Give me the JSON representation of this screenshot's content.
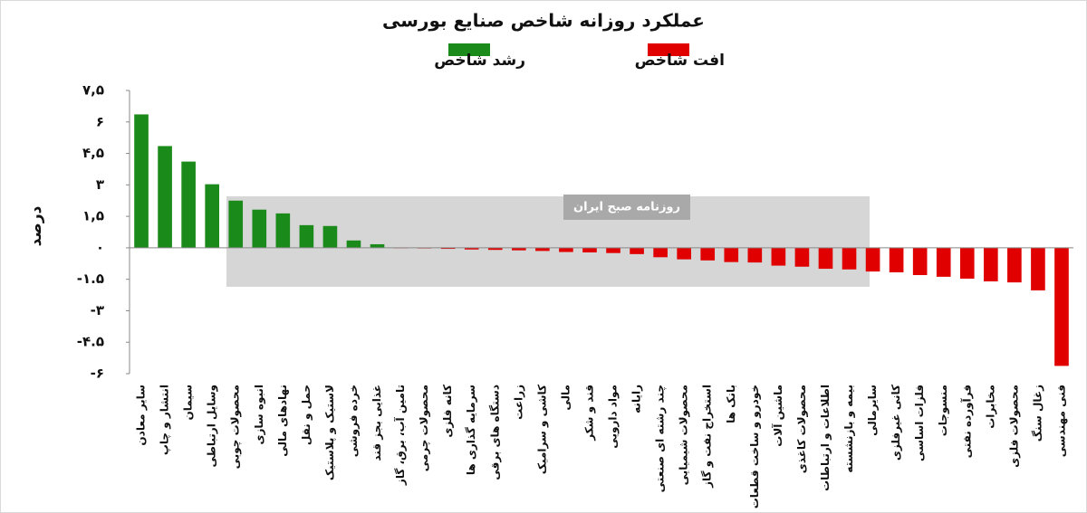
{
  "chart_data": {
    "type": "bar",
    "title": "عملکرد روزانه شاخص صنایع بورسی",
    "y_label": "درصد",
    "watermark": "روزنامه صبح ایران",
    "categories": [
      "سایر معادن",
      "انتشار و چاپ",
      "سیمان",
      "وسایل ارتباطی",
      "محصولات چوبی",
      "انبوه سازی",
      "نهادهای مالی",
      "حمل و نقل",
      "لاستیک و پلاستیک",
      "خرده فروشی",
      "غذایی بجز قند",
      "تامین آب، برق، گاز",
      "محصولات چرمی",
      "کانه فلزی",
      "سرمایه گذاری ها",
      "دستگاه های برقی",
      "زراعت",
      "کاشی و سرامیک",
      "مالی",
      "قند و شکر",
      "مواد دارویی",
      "رایانه",
      "چند رشته ای صنعتی",
      "محصولات شیمیایی",
      "استخراج نفت و گاز",
      "بانک ها",
      "خودرو و ساخت قطعات",
      "ماشین آلات",
      "محصولات کاغذی",
      "اطلاعات و ارتباطات",
      "بیمه و بازنشسته",
      "سایرمالی",
      "کانی غیرفلزی",
      "فلزات اساسی",
      "منسوجات",
      "فرآورده نفتی",
      "مخابرات",
      "محصولات فلزی",
      "زغال سنگ",
      "فنی مهندسی"
    ],
    "series": [
      {
        "name": "رشد شاخص",
        "color": "#1a8a1a",
        "values": [
          6.36,
          4.85,
          4.11,
          3.03,
          2.25,
          1.82,
          1.64,
          1.08,
          1.04,
          0.35,
          0.17,
          null,
          null,
          null,
          null,
          null,
          null,
          null,
          null,
          null,
          null,
          null,
          null,
          null,
          null,
          null,
          null,
          null,
          null,
          null,
          null,
          null,
          null,
          null,
          null,
          null,
          null,
          null,
          null,
          null
        ]
      },
      {
        "name": "افت شاخص",
        "color": "#e00000",
        "values": [
          null,
          null,
          null,
          null,
          null,
          null,
          null,
          null,
          null,
          null,
          null,
          -0.01,
          -0.03,
          -0.05,
          -0.08,
          -0.1,
          -0.12,
          -0.15,
          -0.2,
          -0.22,
          -0.25,
          -0.3,
          -0.45,
          -0.55,
          -0.6,
          -0.68,
          -0.7,
          -0.85,
          -0.9,
          -1.0,
          -1.03,
          -1.13,
          -1.17,
          -1.3,
          -1.38,
          -1.47,
          -1.6,
          -1.65,
          -2.03,
          -5.63
        ]
      }
    ],
    "ylim": [
      -6,
      7.5
    ],
    "yticks": [
      {
        "value": 7.5,
        "label": "۷,۵"
      },
      {
        "value": 6,
        "label": "۶"
      },
      {
        "value": 4.5,
        "label": "۴,۵"
      },
      {
        "value": 3,
        "label": "۳"
      },
      {
        "value": 1.5,
        "label": "۱,۵"
      },
      {
        "value": 0,
        "label": "۰"
      },
      {
        "value": -1.5,
        "label": "-۱.۵"
      },
      {
        "value": -3,
        "label": "-۳"
      },
      {
        "value": -4.5,
        "label": "-۴.۵"
      },
      {
        "value": -6,
        "label": "-۶"
      }
    ]
  }
}
